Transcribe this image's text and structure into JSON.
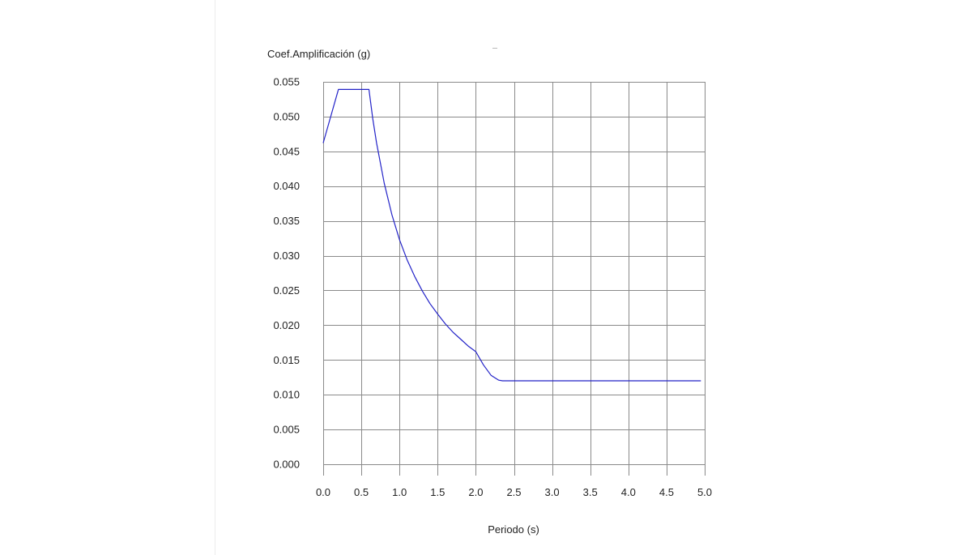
{
  "chart_data": {
    "type": "line",
    "title": "",
    "xlabel": "Periodo (s)",
    "ylabel": "Coef.Amplificación (g)",
    "xlim": [
      0,
      5
    ],
    "ylim": [
      0,
      0.055
    ],
    "x_ticks": [
      "0.0",
      "0.5",
      "1.0",
      "1.5",
      "2.0",
      "2.5",
      "3.0",
      "3.5",
      "4.0",
      "4.5",
      "5.0"
    ],
    "y_ticks": [
      "0.055",
      "0.050",
      "0.045",
      "0.040",
      "0.035",
      "0.030",
      "0.025",
      "0.020",
      "0.015",
      "0.010",
      "0.005",
      "0.000"
    ],
    "grid": true,
    "legend": "none",
    "line_color": "#2323c8",
    "series": [
      {
        "x": [
          0.0,
          0.2,
          0.6,
          0.65,
          0.7,
          0.8,
          0.9,
          1.0,
          1.1,
          1.2,
          1.3,
          1.4,
          1.5,
          1.6,
          1.7,
          1.8,
          1.9,
          2.0,
          2.1,
          2.2,
          2.3,
          2.35,
          2.5,
          3.0,
          3.5,
          4.0,
          4.5,
          4.95
        ],
        "y": [
          0.0462,
          0.0539,
          0.0539,
          0.0497,
          0.0462,
          0.0404,
          0.0359,
          0.0323,
          0.0294,
          0.027,
          0.0249,
          0.0231,
          0.0216,
          0.0202,
          0.019,
          0.018,
          0.017,
          0.0162,
          0.0143,
          0.0128,
          0.0121,
          0.012,
          0.012,
          0.012,
          0.012,
          0.012,
          0.012,
          0.012
        ]
      }
    ]
  }
}
